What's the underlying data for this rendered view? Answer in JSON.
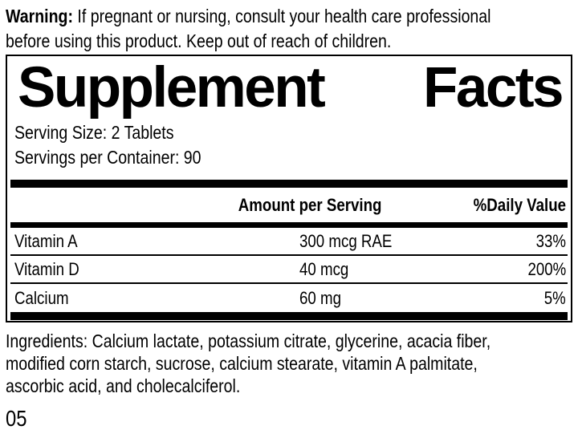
{
  "warning": {
    "bold_label": "Warning:",
    "line1_rest": " If pregnant or nursing, consult your health care professional",
    "line2": "before using this product. Keep out of reach of children."
  },
  "supplement_facts": {
    "title_word_1": "Supplement",
    "title_word_2": "Facts",
    "serving_size": "Serving Size: 2 Tablets",
    "servings_per_container": "Servings per Container: 90",
    "header": {
      "amount": "Amount per Serving",
      "daily_value": "%Daily Value"
    },
    "rows": [
      {
        "nutrient": "Vitamin A",
        "amount": "300 mcg RAE",
        "daily_value": "33%"
      },
      {
        "nutrient": "Vitamin D",
        "amount": "40 mcg",
        "daily_value": "200%"
      },
      {
        "nutrient": "Calcium",
        "amount": "60 mg",
        "daily_value": "5%"
      }
    ]
  },
  "ingredients": {
    "line1": "Ingredients: Calcium lactate, potassium citrate, glycerine, acacia fiber,",
    "line2": "modified corn starch, sucrose, calcium stearate, vitamin A palmitate,",
    "line3": "ascorbic acid, and cholecalciferol."
  },
  "footer": {
    "code": "05"
  },
  "colors": {
    "text": "#000000",
    "background": "#ffffff",
    "rule": "#000000"
  }
}
